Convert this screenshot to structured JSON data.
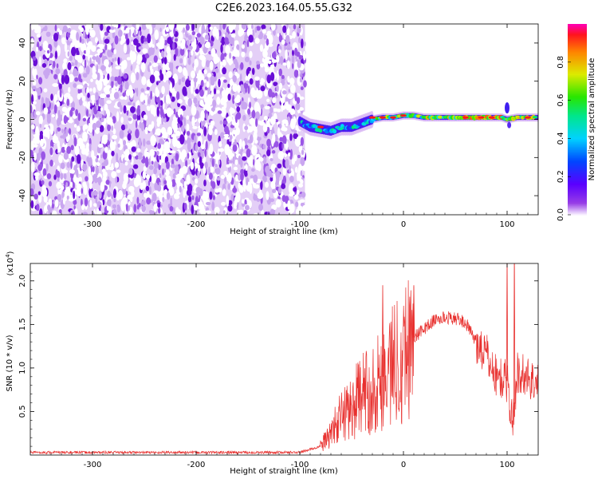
{
  "title": "C2E6.2023.164.05.55.G32",
  "colors": {
    "snr_line": "#e8302e",
    "spectrogram_noise": "#7b1fd6",
    "axes": "#000000"
  },
  "chart_data": [
    {
      "type": "heatmap",
      "xlabel": "Height of straight line (km)",
      "ylabel": "Frequency (Hz)",
      "xlim": [
        -360,
        130
      ],
      "ylim": [
        -50,
        50
      ],
      "xticks": [
        -300,
        -200,
        -100,
        0,
        100
      ],
      "yticks": [
        -40,
        -20,
        0,
        20,
        40
      ],
      "colorbar": {
        "label": "Normalized spectral amplitude",
        "range": [
          0,
          1
        ],
        "ticks": [
          "0.0",
          "0.2",
          "0.4",
          "0.6",
          "0.8"
        ],
        "colormap": "rainbow"
      },
      "noise_region_x": [
        -360,
        -95
      ],
      "signal_trace": {
        "x": [
          -100,
          -90,
          -80,
          -70,
          -60,
          -50,
          -40,
          -30,
          -20,
          -10,
          0,
          10,
          20,
          40,
          60,
          80,
          95,
          100,
          110,
          130
        ],
        "freq": [
          -1,
          -4,
          -5,
          -6,
          -4,
          -4,
          -2,
          0,
          1,
          1,
          2,
          2,
          1,
          1,
          1,
          1,
          1,
          0,
          1,
          1
        ]
      }
    },
    {
      "type": "line",
      "xlabel": "Height of straight line (km)",
      "ylabel": "SNR (10 * v/v)",
      "y_multiplier": "(x10",
      "y_multiplier_exp": "4",
      "xlim": [
        -360,
        130
      ],
      "ylim": [
        0,
        2.2
      ],
      "xticks": [
        -300,
        -200,
        -100,
        0,
        100
      ],
      "yticks": [
        "0.5",
        "1.0",
        "1.5",
        "2.0"
      ],
      "series": [
        {
          "x": [
            -360,
            -300,
            -200,
            -100,
            -80,
            -70,
            -60,
            -50,
            -40,
            -30,
            -20,
            -10,
            0,
            10,
            20,
            30,
            40,
            50,
            60,
            70,
            80,
            90,
            100,
            105,
            110,
            120,
            130
          ],
          "values": [
            0.03,
            0.03,
            0.03,
            0.03,
            0.1,
            0.25,
            0.45,
            0.55,
            0.7,
            0.75,
            0.9,
            1.05,
            1.2,
            1.35,
            1.45,
            1.55,
            1.58,
            1.57,
            1.52,
            1.3,
            1.15,
            0.9,
            0.85,
            0.35,
            0.95,
            0.9,
            0.8
          ]
        }
      ]
    }
  ]
}
